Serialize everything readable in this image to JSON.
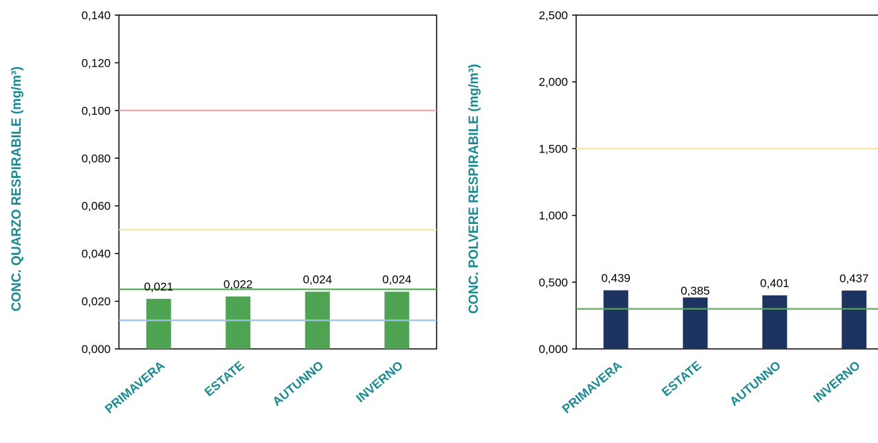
{
  "chart_data": [
    {
      "type": "bar",
      "categories": [
        "PRIMAVERA",
        "ESTATE",
        "AUTUNNO",
        "INVERNO"
      ],
      "values": [
        0.021,
        0.022,
        0.024,
        0.024
      ],
      "data_labels": [
        "0,021",
        "0,022",
        "0,024",
        "0,024"
      ],
      "bar_color": "#4ea453",
      "ylabel": "CONC. QUARZO RESPIRABILE (mg/m³)",
      "ylim": [
        0,
        0.14
      ],
      "yticks": [
        0,
        0.02,
        0.04,
        0.06,
        0.08,
        0.1,
        0.12,
        0.14
      ],
      "ytick_labels": [
        "0,000",
        "0,020",
        "0,040",
        "0,060",
        "0,080",
        "0,100",
        "0,120",
        "0,140"
      ],
      "reference_lines": [
        {
          "value": 0.1,
          "color": "#f4a6a6"
        },
        {
          "value": 0.05,
          "color": "#f8e59a"
        },
        {
          "value": 0.025,
          "color": "#5aa85c"
        },
        {
          "value": 0.012,
          "color": "#9cc3e4"
        }
      ],
      "grid": false,
      "label_color": "#1a8a92"
    },
    {
      "type": "bar",
      "categories": [
        "PRIMAVERA",
        "ESTATE",
        "AUTUNNO",
        "INVERNO"
      ],
      "values": [
        0.439,
        0.385,
        0.401,
        0.437
      ],
      "data_labels": [
        "0,439",
        "0,385",
        "0,401",
        "0,437"
      ],
      "bar_color": "#1d3461",
      "ylabel": "CONC. POLVERE RESPIRABILE (mg/m³)",
      "ylim": [
        0,
        2.5
      ],
      "yticks": [
        0,
        0.5,
        1,
        1.5,
        2,
        2.5
      ],
      "ytick_labels": [
        "0,000",
        "0,500",
        "1,000",
        "1,500",
        "2,000",
        "2,500"
      ],
      "reference_lines": [
        {
          "value": 1.5,
          "color": "#f8e59a"
        },
        {
          "value": 0.3,
          "color": "#5aa85c"
        }
      ],
      "grid": false,
      "label_color": "#1a8a92"
    }
  ]
}
